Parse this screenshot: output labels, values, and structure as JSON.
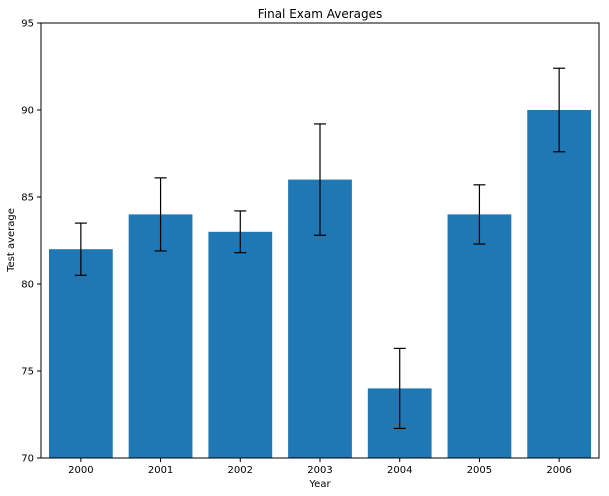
{
  "chart_data": {
    "type": "bar",
    "title": "Final Exam Averages",
    "xlabel": "Year",
    "ylabel": "Test average",
    "categories": [
      "2000",
      "2001",
      "2002",
      "2003",
      "2004",
      "2005",
      "2006"
    ],
    "values": [
      82,
      84,
      83,
      86,
      74,
      84,
      90
    ],
    "error_low": [
      80.5,
      81.9,
      81.8,
      82.8,
      71.7,
      82.3,
      87.6
    ],
    "error_high": [
      83.5,
      86.1,
      84.2,
      89.2,
      76.3,
      85.7,
      92.4
    ],
    "ylim": [
      70,
      95
    ],
    "yticks": [
      "70",
      "75",
      "80",
      "85",
      "90",
      "95"
    ],
    "ytick_values": [
      70,
      75,
      80,
      85,
      90,
      95
    ],
    "grid": false,
    "legend": "none",
    "colors": {
      "bar": "#1f77b4",
      "errorbar": "#000000",
      "axis": "#000000"
    }
  }
}
